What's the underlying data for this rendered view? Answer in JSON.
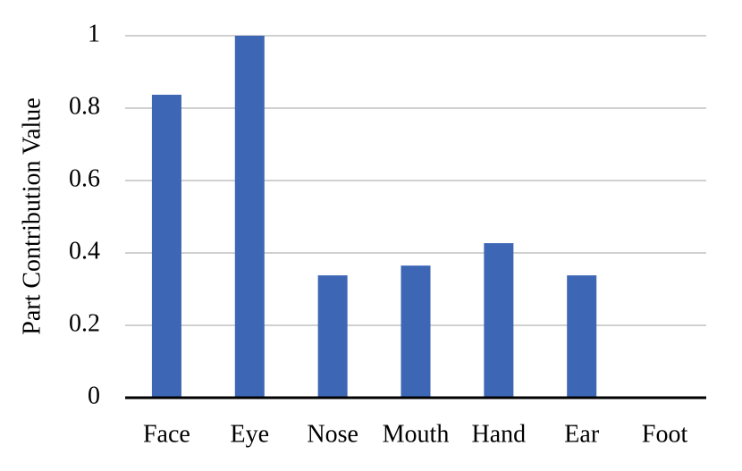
{
  "chart_data": {
    "type": "bar",
    "ylabel": "Part Contribution Value",
    "categories": [
      "Face",
      "Eye",
      "Nose",
      "Mouth",
      "Hand",
      "Ear",
      "Foot"
    ],
    "values": [
      0.837,
      1.0,
      0.338,
      0.365,
      0.427,
      0.338,
      0
    ],
    "color": "#3d66b5",
    "ylim": [
      0,
      1
    ],
    "yticks": [
      0,
      0.2,
      0.4,
      0.6,
      0.8,
      1
    ],
    "grid": true
  }
}
